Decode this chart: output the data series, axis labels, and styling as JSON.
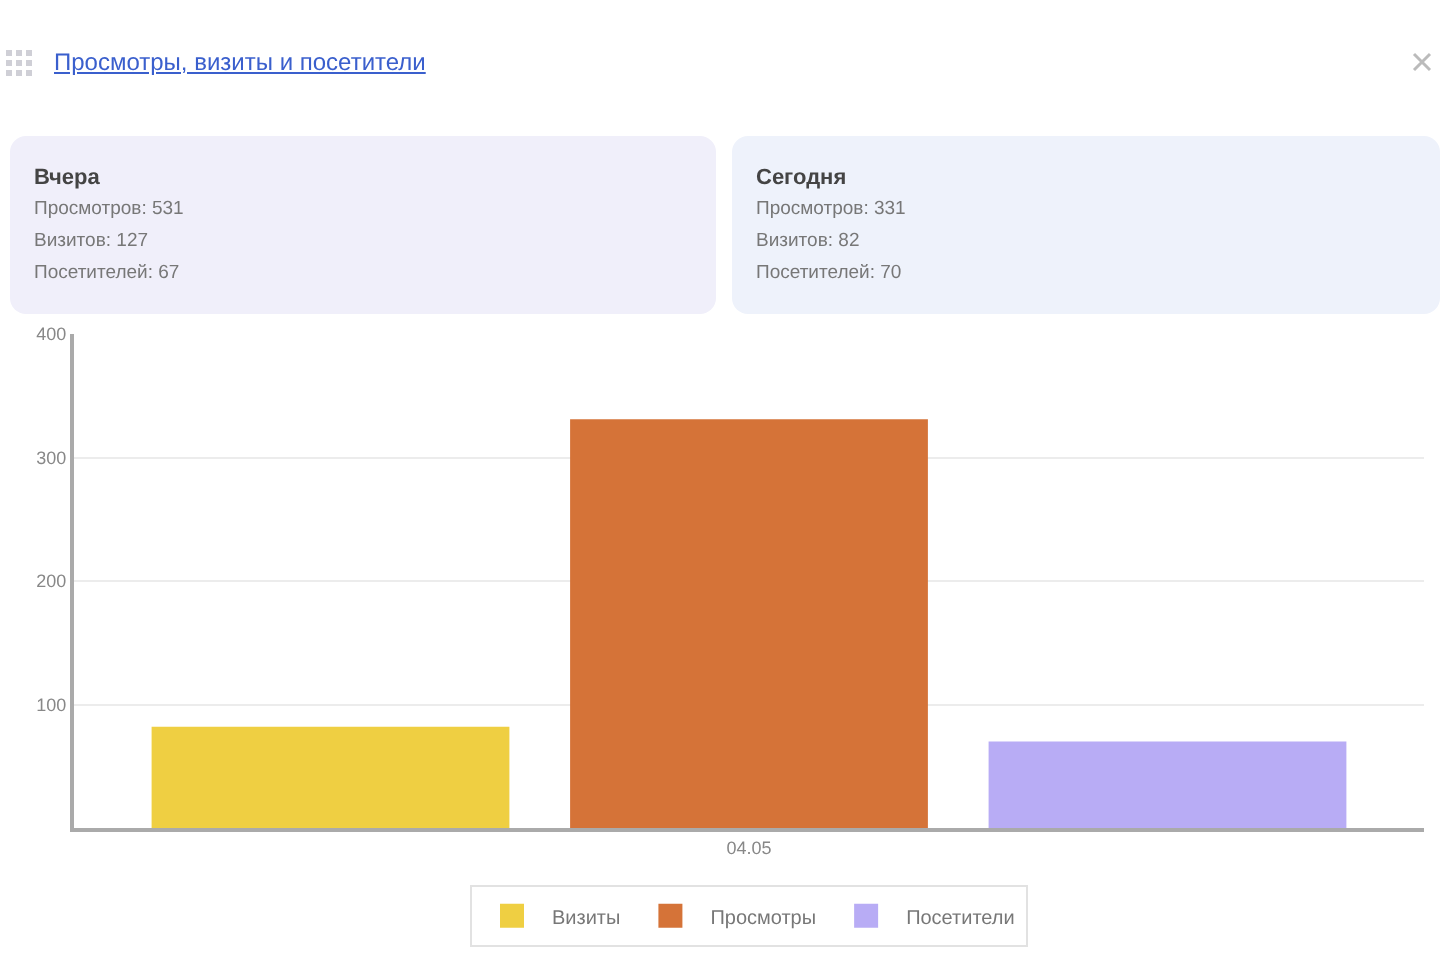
{
  "chart_data": {
    "type": "bar",
    "title": "Просмотры, визиты и посетители",
    "annotations": [
      "Вчера\nПросмотров: 531\nВизитов: 127\nПосетителей: 67",
      "Сегодня\nПросмотров: 331\nВизитов: 82\nПосетителей: 70"
    ],
    "categories": [
      "04.05"
    ],
    "series": [
      {
        "name": "Визиты",
        "color": "#efcf42",
        "values": [
          82
        ]
      },
      {
        "name": "Просмотры",
        "color": "#d57338",
        "values": [
          331
        ]
      },
      {
        "name": "Посетители",
        "color": "#b8acf5",
        "values": [
          70
        ]
      }
    ],
    "ylim": [
      0,
      400
    ],
    "yticks": [
      100,
      200,
      300,
      400
    ],
    "grid": "y",
    "legend": "bottom"
  }
}
